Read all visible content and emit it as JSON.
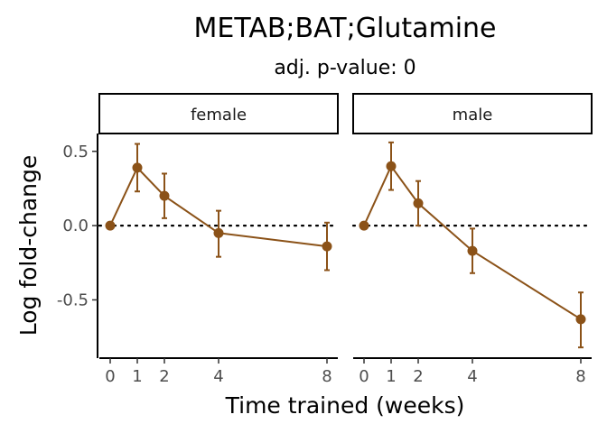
{
  "chart_data": {
    "type": "line",
    "title": "METAB;BAT;Glutamine",
    "subtitle": "adj. p-value: 0",
    "xlabel": "Time trained (weeks)",
    "ylabel": "Log fold-change",
    "x_ticks": [
      0,
      1,
      2,
      4,
      8
    ],
    "y_ticks": [
      0.5,
      0.0,
      -0.5
    ],
    "y_tick_labels": [
      "0.5",
      "0.0",
      "-0.5"
    ],
    "ylim": [
      -0.88,
      0.62
    ],
    "xlim": [
      -0.4,
      8.4
    ],
    "reference_line_y": 0,
    "color": "#8B5218",
    "panels": [
      {
        "name": "female",
        "points": [
          {
            "x": 0,
            "y": 0.0,
            "lo": 0.0,
            "hi": 0.0
          },
          {
            "x": 1,
            "y": 0.39,
            "lo": 0.23,
            "hi": 0.55
          },
          {
            "x": 2,
            "y": 0.2,
            "lo": 0.05,
            "hi": 0.35
          },
          {
            "x": 4,
            "y": -0.05,
            "lo": -0.21,
            "hi": 0.1
          },
          {
            "x": 8,
            "y": -0.14,
            "lo": -0.3,
            "hi": 0.02
          }
        ]
      },
      {
        "name": "male",
        "points": [
          {
            "x": 0,
            "y": 0.0,
            "lo": 0.0,
            "hi": 0.0
          },
          {
            "x": 1,
            "y": 0.4,
            "lo": 0.24,
            "hi": 0.56
          },
          {
            "x": 2,
            "y": 0.15,
            "lo": 0.0,
            "hi": 0.3
          },
          {
            "x": 4,
            "y": -0.17,
            "lo": -0.32,
            "hi": -0.02
          },
          {
            "x": 8,
            "y": -0.63,
            "lo": -0.82,
            "hi": -0.45
          }
        ]
      }
    ]
  }
}
